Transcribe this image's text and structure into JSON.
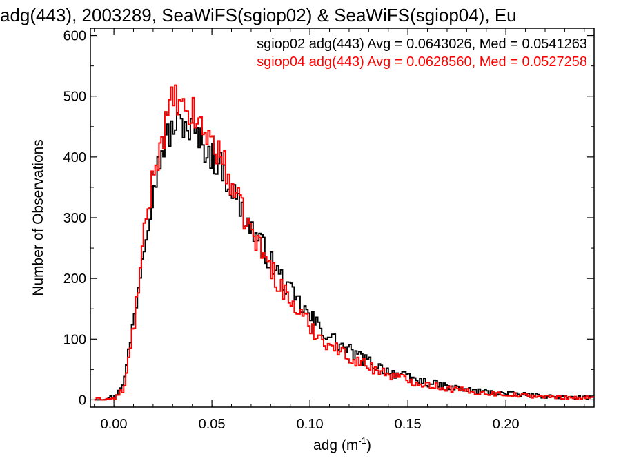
{
  "chart_data": {
    "type": "histogram",
    "title": "adg(443), 2003289, SeaWiFS(sgiop02) & SeaWiFS(sgiop04), Eu",
    "xlabel": "adg (m",
    "xlabel_sup": "-1",
    "xlabel_end": ")",
    "ylabel": "Number of Observations",
    "xlim": [
      -0.012,
      0.245
    ],
    "ylim": [
      -12,
      612
    ],
    "xticks": [
      0.0,
      0.05,
      0.1,
      0.15,
      0.2
    ],
    "xtick_labels": [
      "0.00",
      "0.05",
      "0.10",
      "0.15",
      "0.20"
    ],
    "yticks": [
      0,
      100,
      200,
      300,
      400,
      500,
      600
    ],
    "ytick_labels": [
      "0",
      "100",
      "200",
      "300",
      "400",
      "500",
      "600"
    ],
    "grid": false,
    "legend_position": "top-right",
    "series": [
      {
        "name": "sgiop02",
        "legend": "sgiop02 adg(443) Avg = 0.0643026, Med = 0.0541263",
        "color": "#000000",
        "x": [
          -0.01,
          0.0,
          0.005,
          0.01,
          0.015,
          0.02,
          0.025,
          0.03,
          0.035,
          0.04,
          0.045,
          0.05,
          0.055,
          0.06,
          0.065,
          0.07,
          0.075,
          0.08,
          0.085,
          0.09,
          0.095,
          0.1,
          0.105,
          0.11,
          0.115,
          0.12,
          0.125,
          0.13,
          0.135,
          0.14,
          0.145,
          0.15,
          0.16,
          0.17,
          0.18,
          0.19,
          0.2,
          0.21,
          0.22,
          0.23,
          0.245
        ],
        "y": [
          0,
          5,
          35,
          140,
          260,
          360,
          420,
          450,
          455,
          440,
          420,
          400,
          380,
          345,
          310,
          280,
          255,
          225,
          200,
          175,
          155,
          135,
          118,
          103,
          90,
          80,
          70,
          62,
          54,
          47,
          42,
          36,
          28,
          21,
          16,
          13,
          10,
          8,
          6,
          4,
          3
        ]
      },
      {
        "name": "sgiop04",
        "legend": "sgiop04 adg(443) Avg = 0.0628560, Med = 0.0527258",
        "color": "#ff0000",
        "x": [
          -0.01,
          0.0,
          0.005,
          0.01,
          0.015,
          0.02,
          0.025,
          0.03,
          0.035,
          0.04,
          0.045,
          0.05,
          0.055,
          0.06,
          0.065,
          0.07,
          0.075,
          0.08,
          0.085,
          0.09,
          0.095,
          0.1,
          0.105,
          0.11,
          0.115,
          0.12,
          0.125,
          0.13,
          0.135,
          0.14,
          0.145,
          0.15,
          0.16,
          0.17,
          0.18,
          0.19,
          0.2,
          0.21,
          0.22,
          0.23,
          0.245
        ],
        "y": [
          0,
          2,
          20,
          130,
          270,
          380,
          440,
          500,
          470,
          470,
          445,
          425,
          395,
          350,
          310,
          275,
          245,
          215,
          185,
          160,
          140,
          120,
          103,
          90,
          80,
          70,
          62,
          55,
          48,
          42,
          37,
          32,
          25,
          19,
          14,
          11,
          9,
          7,
          5,
          4,
          3
        ]
      }
    ]
  }
}
